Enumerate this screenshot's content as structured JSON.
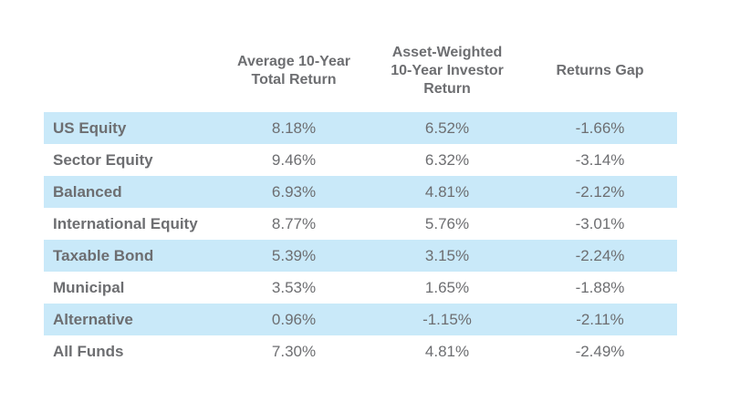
{
  "colors": {
    "stripe_blue": "#C9E9F9",
    "text_gray": "#6D6E71",
    "background": "#FFFFFF"
  },
  "table": {
    "headers": [
      "Average 10-Year\nTotal Return",
      "Asset-Weighted\n10-Year Investor\nReturn",
      "Returns Gap"
    ],
    "rows": [
      {
        "label": "US Equity",
        "avg": "8.18%",
        "inv": "6.52%",
        "gap": "-1.66%"
      },
      {
        "label": "Sector Equity",
        "avg": "9.46%",
        "inv": "6.32%",
        "gap": "-3.14%"
      },
      {
        "label": "Balanced",
        "avg": "6.93%",
        "inv": "4.81%",
        "gap": "-2.12%"
      },
      {
        "label": "International Equity",
        "avg": "8.77%",
        "inv": "5.76%",
        "gap": "-3.01%"
      },
      {
        "label": "Taxable Bond",
        "avg": "5.39%",
        "inv": "3.15%",
        "gap": "-2.24%"
      },
      {
        "label": "Municipal",
        "avg": "3.53%",
        "inv": "1.65%",
        "gap": "-1.88%"
      },
      {
        "label": "Alternative",
        "avg": "0.96%",
        "inv": "-1.15%",
        "gap": "-2.11%"
      },
      {
        "label": "All Funds",
        "avg": "7.30%",
        "inv": "4.81%",
        "gap": "-2.49%"
      }
    ]
  },
  "chart_data": {
    "type": "table",
    "title": "",
    "categories": [
      "US Equity",
      "Sector Equity",
      "Balanced",
      "International Equity",
      "Taxable Bond",
      "Municipal",
      "Alternative",
      "All Funds"
    ],
    "series": [
      {
        "name": "Average 10-Year Total Return",
        "values": [
          8.18,
          9.46,
          6.93,
          8.77,
          5.39,
          3.53,
          0.96,
          7.3
        ]
      },
      {
        "name": "Asset-Weighted 10-Year Investor Return",
        "values": [
          6.52,
          6.32,
          4.81,
          5.76,
          3.15,
          1.65,
          -1.15,
          4.81
        ]
      },
      {
        "name": "Returns Gap",
        "values": [
          -1.66,
          -3.14,
          -2.12,
          -3.01,
          -2.24,
          -1.88,
          -2.11,
          -2.49
        ]
      }
    ],
    "units": "%"
  }
}
